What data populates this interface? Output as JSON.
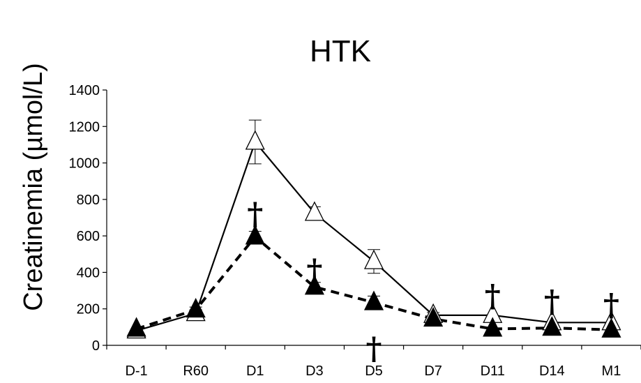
{
  "chart_data": {
    "type": "line",
    "title": "HTK",
    "ylabel": "Creatinemia (µmol/L)",
    "xlabel": "",
    "categories": [
      "D-1",
      "R60",
      "D1",
      "D3",
      "D5",
      "D7",
      "D11",
      "D14",
      "M1"
    ],
    "ylim": [
      0,
      1400
    ],
    "yticks": [
      0,
      200,
      400,
      600,
      800,
      1000,
      1200,
      1400
    ],
    "grid": false,
    "series": [
      {
        "style": "solid",
        "marker": "open-triangle",
        "values": [
          80,
          175,
          1115,
          725,
          460,
          165,
          165,
          125,
          125
        ],
        "error": [
          null,
          20,
          120,
          35,
          65,
          15,
          null,
          null,
          null
        ]
      },
      {
        "style": "dashed",
        "marker": "filled-triangle",
        "values": [
          90,
          195,
          595,
          320,
          235,
          145,
          90,
          95,
          85
        ],
        "error": [
          null,
          15,
          30,
          25,
          35,
          15,
          null,
          null,
          null
        ]
      }
    ],
    "annotations": [
      {
        "text": "†",
        "category": "D1",
        "y": 720
      },
      {
        "text": "†",
        "category": "D3",
        "y": 410
      },
      {
        "text": "†",
        "category": "D5",
        "y": -20
      },
      {
        "text": "†",
        "category": "D11",
        "y": 270
      },
      {
        "text": "†",
        "category": "D14",
        "y": 240
      },
      {
        "text": "†",
        "category": "M1",
        "y": 220
      }
    ]
  }
}
